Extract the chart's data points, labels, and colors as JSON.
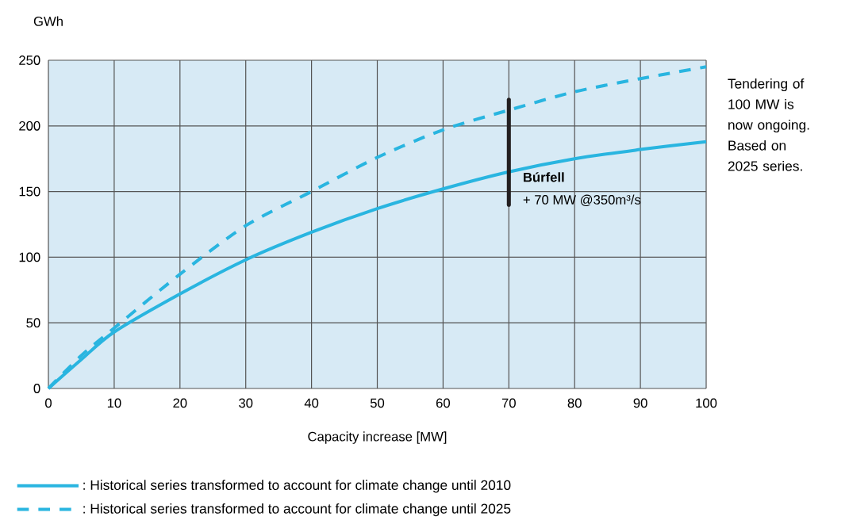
{
  "chart_data": {
    "type": "line",
    "xlabel": "Capacity increase [MW]",
    "ylabel": "GWh",
    "xlim": [
      0,
      100
    ],
    "ylim": [
      0,
      250
    ],
    "xticks": [
      0,
      10,
      20,
      30,
      40,
      50,
      60,
      70,
      80,
      90,
      100
    ],
    "yticks": [
      0,
      50,
      100,
      150,
      200,
      250
    ],
    "grid": true,
    "legend": "bottom",
    "series": [
      {
        "name": ": Historical series transformed to account for climate change until 2010",
        "color": "#29b5e0",
        "line_style": "solid",
        "x": [
          0,
          5,
          10,
          20,
          30,
          40,
          50,
          60,
          70,
          80,
          90,
          100
        ],
        "values": [
          0,
          22,
          43,
          72,
          98,
          119,
          137,
          152,
          165,
          175,
          182,
          188
        ]
      },
      {
        "name": ": Historical series transformed to account for climate change until 2025",
        "color": "#29b5e0",
        "line_style": "dashed",
        "x": [
          0,
          5,
          10,
          20,
          30,
          40,
          50,
          60,
          70,
          80,
          90,
          100
        ],
        "values": [
          0,
          25,
          46,
          87,
          124,
          150,
          176,
          197,
          212,
          226,
          236,
          245
        ]
      },
      {
        "color": "#231f20",
        "line_style": "solid",
        "x": [
          70,
          70
        ],
        "values": [
          140,
          220
        ]
      }
    ],
    "annotations": [
      {
        "text": "**Búrfell**",
        "x": 70,
        "y": 157
      },
      {
        "text": "+ 70 MW @350m³/s",
        "x": 70,
        "y": 140
      },
      "Tendering of 100 MW is now ongoing. Based on 2025 series."
    ]
  }
}
